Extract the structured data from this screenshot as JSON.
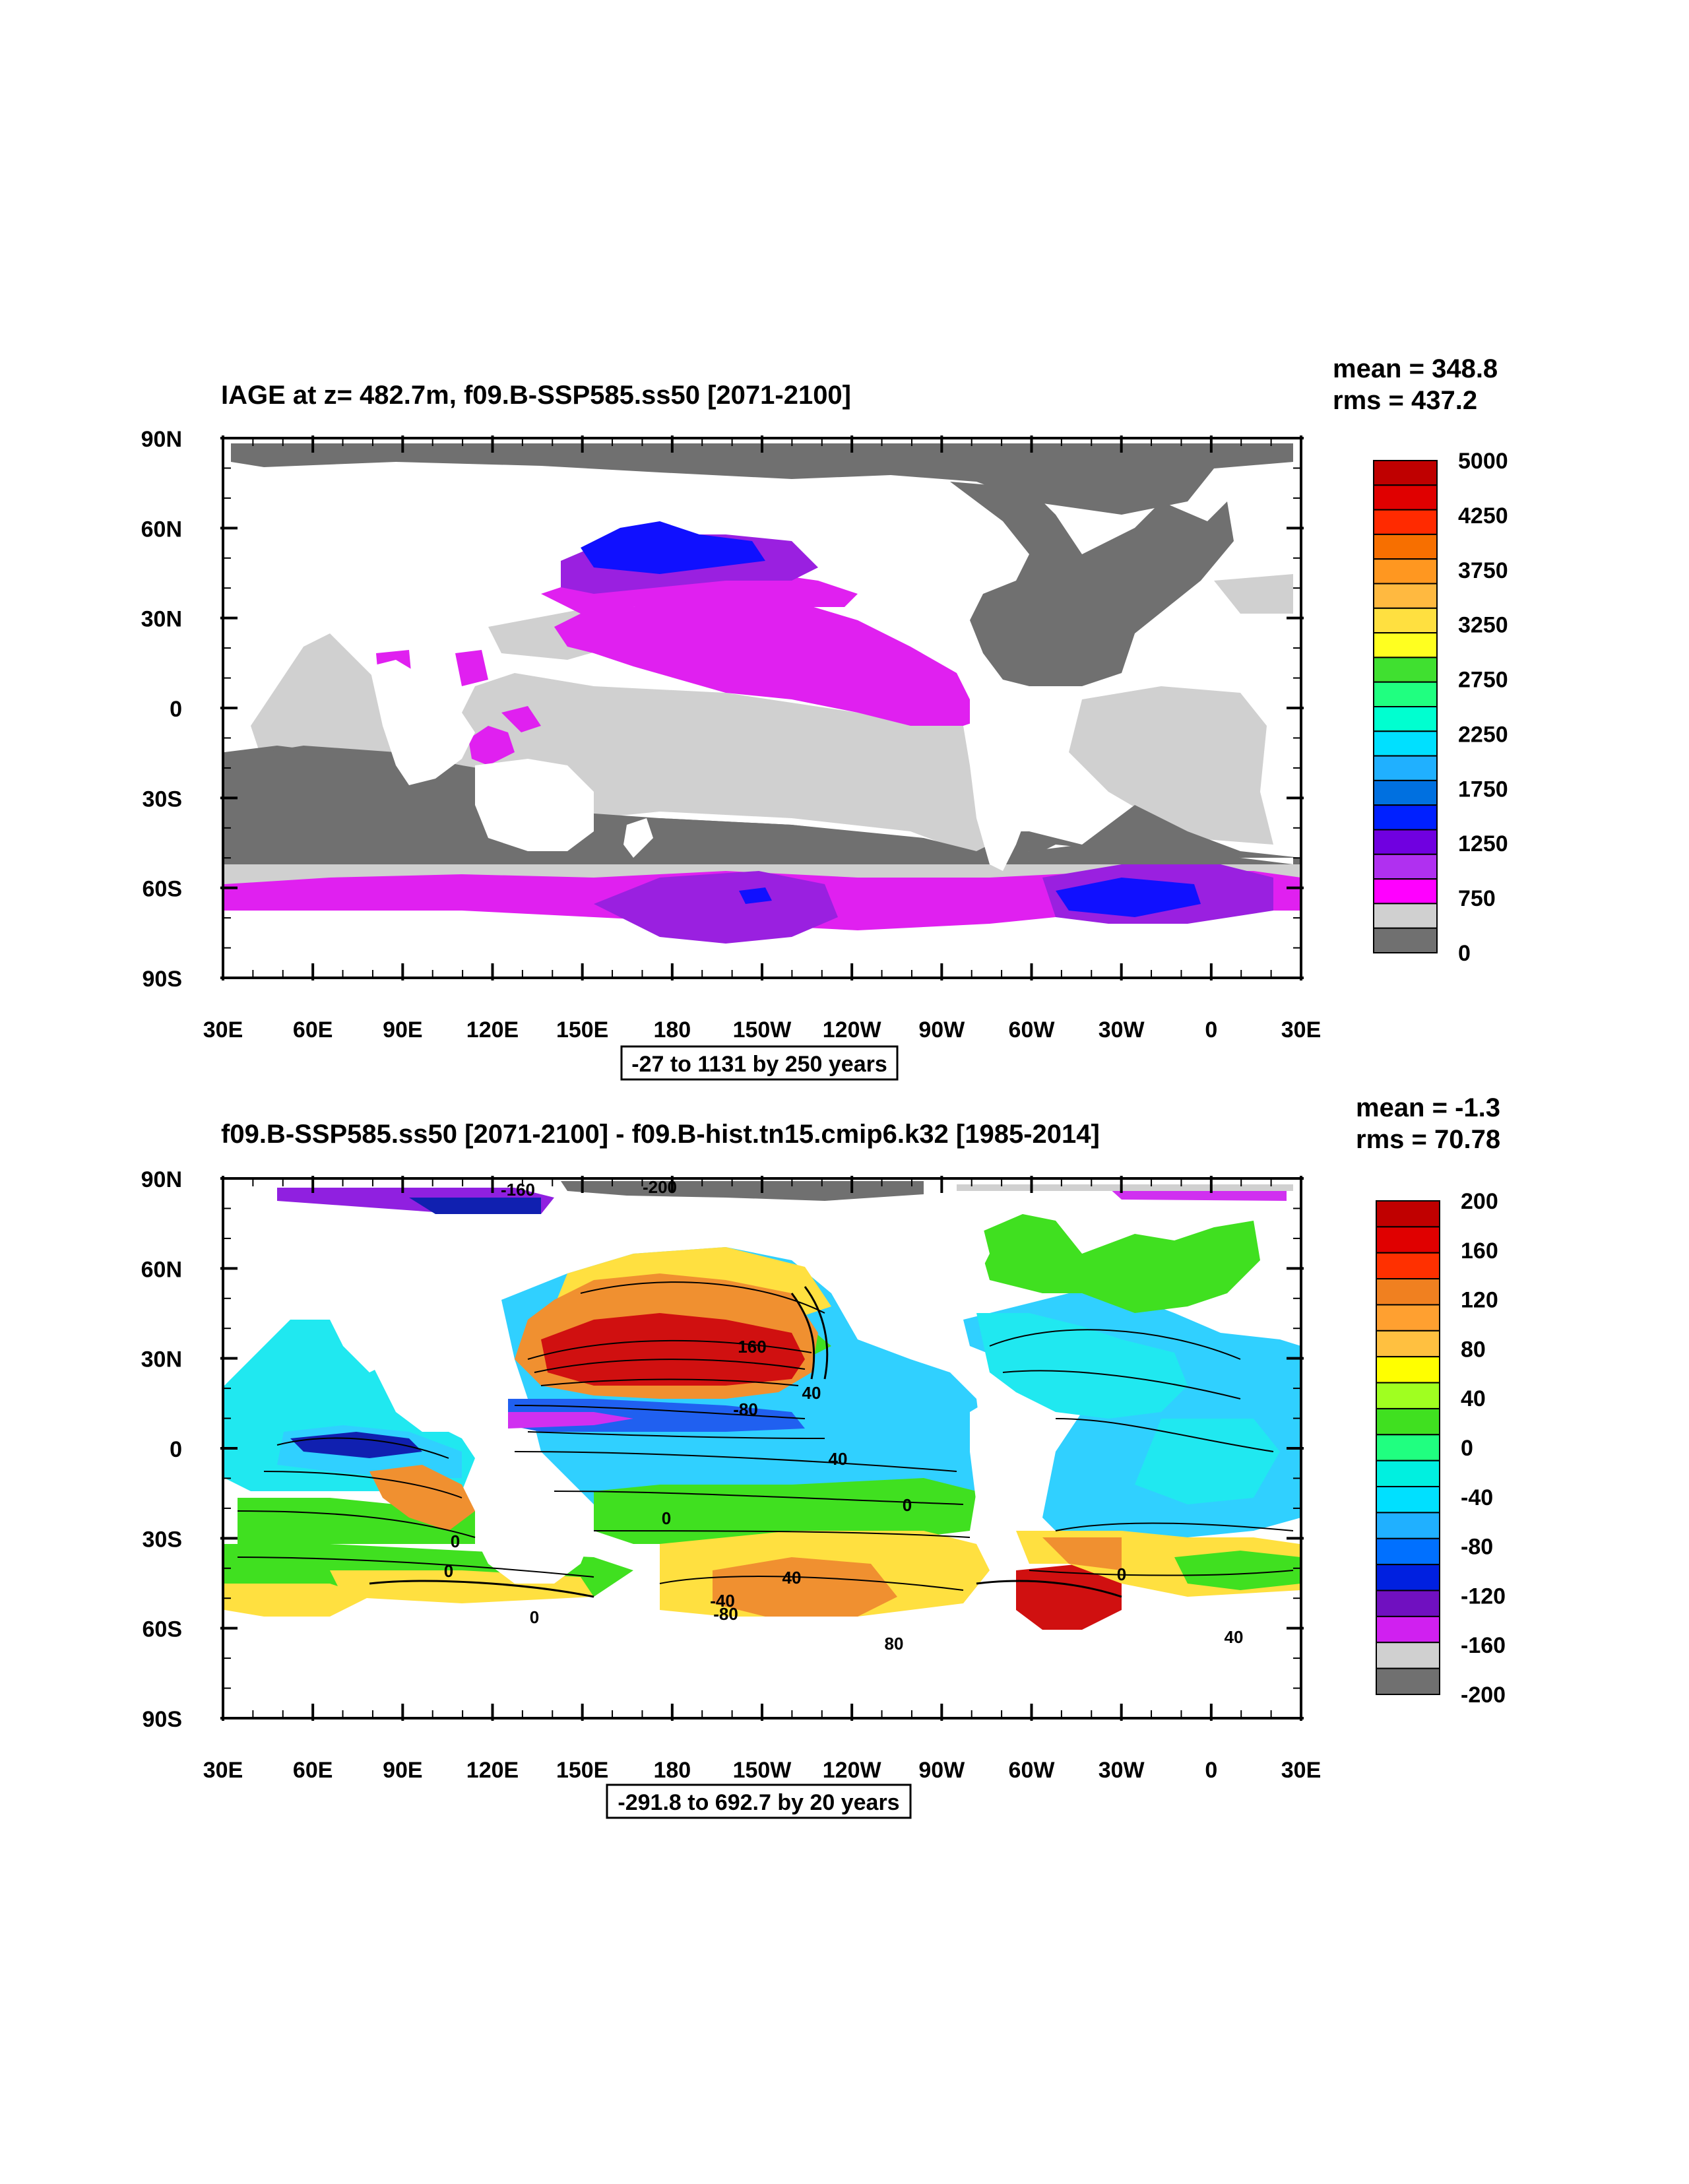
{
  "panels": [
    {
      "title": "IAGE at z= 482.7m, f09.B-SSP585.ss50 [2071-2100]",
      "mean_label": "mean = 348.8",
      "rms_label": "rms = 437.2",
      "range_label": "-27 to 1131 by 250 years",
      "colorbar": {
        "labels": [
          "5000",
          "4250",
          "3750",
          "3250",
          "2750",
          "2250",
          "1750",
          "1250",
          "750",
          "0"
        ],
        "colors": [
          "#bf0000",
          "#e00000",
          "#ff2a00",
          "#f76f00",
          "#ff9720",
          "#ffb940",
          "#ffe040",
          "#ffff20",
          "#40e030",
          "#20ff80",
          "#00ffd0",
          "#00e0ff",
          "#20b0ff",
          "#0070e0",
          "#0020ff",
          "#7000e0",
          "#b030f0",
          "#ff00ff",
          "#d0d0d0",
          "#707070"
        ]
      },
      "map_colors": {
        "land": "#ffffff",
        "dark_gray": "#707070",
        "light_gray": "#d0d0d0",
        "magenta": "#e020f0",
        "purple": "#9a20e0",
        "blue": "#1010ff"
      }
    },
    {
      "title": "f09.B-SSP585.ss50 [2071-2100] - f09.B-hist.tn15.cmip6.k32 [1985-2014]",
      "mean_label": "mean = -1.3",
      "rms_label": "rms = 70.78",
      "range_label": "-291.8 to 692.7 by 20 years",
      "colorbar": {
        "labels": [
          "200",
          "160",
          "120",
          "80",
          "40",
          "0",
          "-40",
          "-80",
          "-120",
          "-160",
          "-200"
        ],
        "colors": [
          "#c00000",
          "#e00000",
          "#ff3000",
          "#f08020",
          "#ffa030",
          "#ffc040",
          "#ffff00",
          "#a0ff20",
          "#40e020",
          "#20ff80",
          "#00f0e0",
          "#00e0ff",
          "#20b0ff",
          "#0070ff",
          "#0020e0",
          "#7010c0",
          "#d020f0",
          "#d0d0d0",
          "#707070"
        ]
      },
      "contour_labels": [
        "-160",
        "-200",
        "160",
        "40",
        "-80",
        "0",
        "40",
        "0",
        "0",
        "0",
        "0",
        "-40",
        "-80",
        "80",
        "40",
        "0",
        "40"
      ],
      "map_colors": {
        "cyan": "#20e8f0",
        "light_blue": "#30d0ff",
        "green": "#40e020",
        "yellow": "#ffe040",
        "orange": "#f09030",
        "red": "#d01010",
        "blue": "#2060f0",
        "dark_blue": "#1020b0",
        "magenta": "#d030f0"
      }
    }
  ],
  "axes": {
    "lat_labels": [
      "90N",
      "60N",
      "30N",
      "0",
      "30S",
      "60S",
      "90S"
    ],
    "lon_labels": [
      "30E",
      "60E",
      "90E",
      "120E",
      "150E",
      "180",
      "150W",
      "120W",
      "90W",
      "60W",
      "30W",
      "0",
      "30E"
    ]
  }
}
